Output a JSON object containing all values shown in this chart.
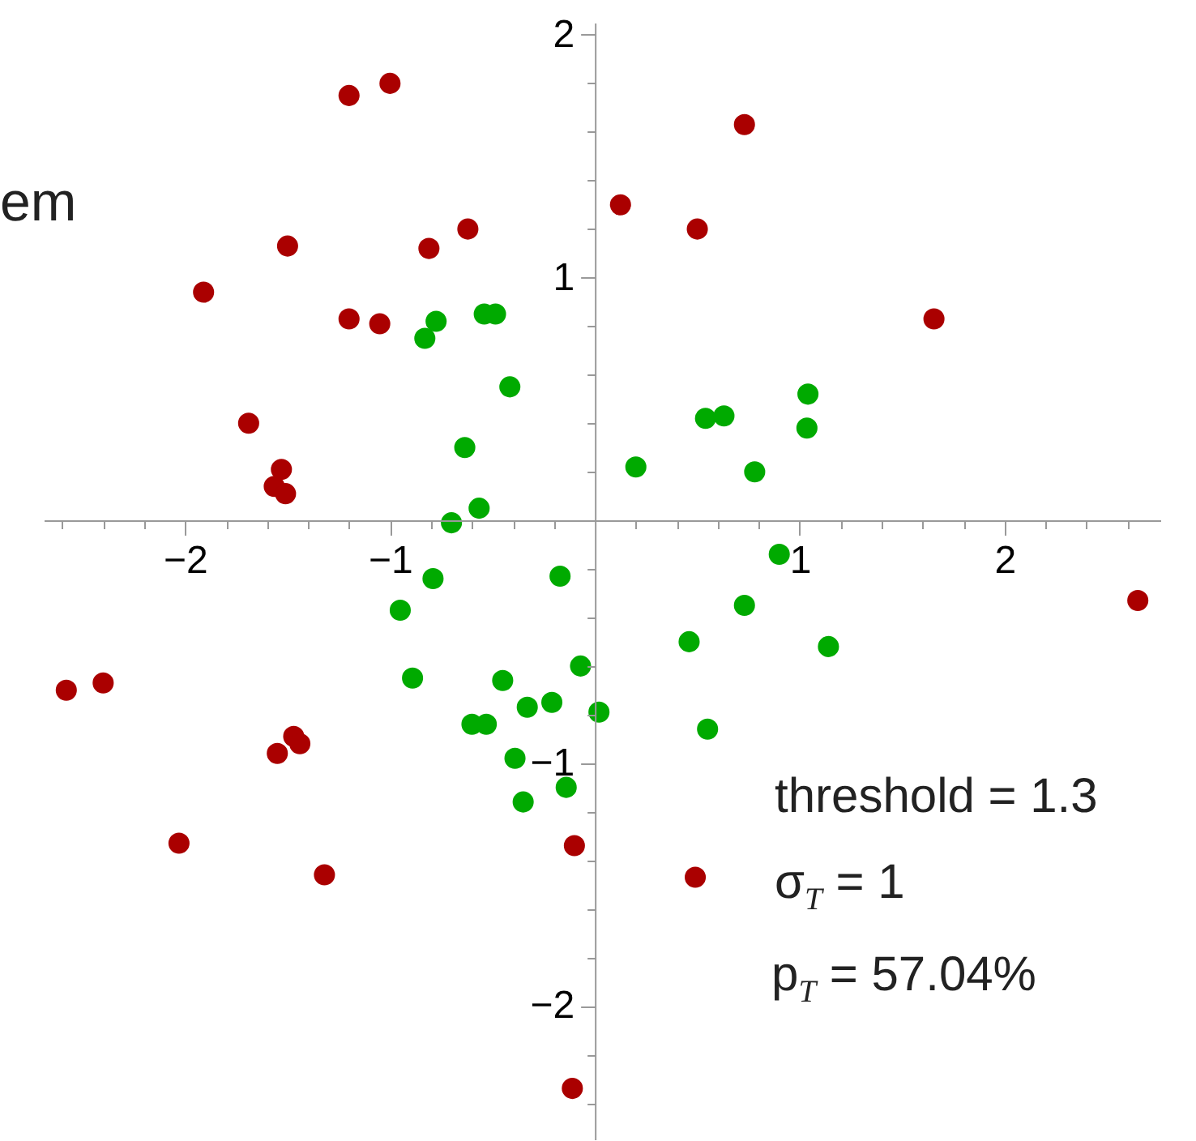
{
  "chart_data": {
    "type": "scatter",
    "marker": "circle",
    "grid": false,
    "xlim": [
      -2.69,
      2.76
    ],
    "ylim": [
      -2.55,
      2.05
    ],
    "xticks": [
      {
        "value": -2.6,
        "label": null
      },
      {
        "value": -2.4,
        "label": null
      },
      {
        "value": -2.2,
        "label": null
      },
      -2,
      {
        "value": -1.8,
        "label": null
      },
      {
        "value": -1.6,
        "label": null
      },
      {
        "value": -1.4,
        "label": null
      },
      {
        "value": -1.2,
        "label": null
      },
      -1,
      {
        "value": -0.8,
        "label": null
      },
      {
        "value": -0.6,
        "label": null
      },
      {
        "value": -0.4,
        "label": null
      },
      {
        "value": -0.2,
        "label": null
      },
      {
        "value": 0.2,
        "label": null
      },
      {
        "value": 0.4,
        "label": null
      },
      {
        "value": 0.6,
        "label": null
      },
      {
        "value": 0.8,
        "label": null
      },
      1,
      {
        "value": 1.2,
        "label": null
      },
      {
        "value": 1.4,
        "label": null
      },
      {
        "value": 1.6,
        "label": null
      },
      {
        "value": 1.8,
        "label": null
      },
      2,
      {
        "value": 2.2,
        "label": null
      },
      {
        "value": 2.4,
        "label": null
      },
      {
        "value": 2.6,
        "label": null
      }
    ],
    "yticks": [
      {
        "value": -2.4,
        "label": null
      },
      {
        "value": -2.2,
        "label": null
      },
      -2,
      {
        "value": -1.8,
        "label": null
      },
      {
        "value": -1.6,
        "label": null
      },
      {
        "value": -1.4,
        "label": null
      },
      {
        "value": -1.2,
        "label": null
      },
      -1,
      {
        "value": -0.8,
        "label": null
      },
      {
        "value": -0.6,
        "label": null
      },
      {
        "value": -0.4,
        "label": null
      },
      {
        "value": -0.2,
        "label": null
      },
      {
        "value": 0.2,
        "label": null
      },
      {
        "value": 0.4,
        "label": null
      },
      {
        "value": 0.6,
        "label": null
      },
      {
        "value": 0.8,
        "label": null
      },
      1,
      {
        "value": 1.2,
        "label": null
      },
      {
        "value": 1.4,
        "label": null
      },
      {
        "value": 1.6,
        "label": null
      },
      {
        "value": 1.8,
        "label": null
      },
      2
    ],
    "series": [
      {
        "color": "#aa0000",
        "x": [
          -1.0,
          -1.2,
          0.73,
          0.125,
          0.5,
          1.655,
          -1.5,
          -0.81,
          -0.62,
          -1.91,
          -1.2,
          -1.05,
          -1.69,
          -1.53,
          -1.565,
          -1.51,
          -2.58,
          -2.4,
          -1.47,
          -1.44,
          -1.55,
          -2.03,
          -1.32,
          -0.1,
          -0.11,
          2.65,
          0.49
        ],
        "values": [
          1.8,
          1.75,
          1.63,
          1.3,
          1.2,
          0.83,
          1.13,
          1.12,
          1.2,
          0.94,
          0.83,
          0.81,
          0.4,
          0.21,
          0.14,
          0.11,
          -0.7,
          -0.67,
          -0.89,
          -0.92,
          -0.96,
          -1.33,
          -1.46,
          -1.34,
          -2.34,
          -0.33,
          -1.47
        ]
      },
      {
        "color": "#00aa00",
        "x": [
          -0.775,
          -0.83,
          -0.54,
          -0.485,
          -0.415,
          -0.635,
          -0.565,
          -0.7,
          0.2,
          0.54,
          0.63,
          1.04,
          1.035,
          0.78,
          -0.79,
          -0.95,
          -0.17,
          -0.07,
          -0.89,
          -0.45,
          -0.33,
          -0.21,
          0.02,
          -0.6,
          -0.53,
          -0.39,
          -0.14,
          -0.35,
          0.9,
          0.73,
          0.46,
          1.14,
          0.55
        ],
        "values": [
          0.82,
          0.75,
          0.85,
          0.85,
          0.55,
          0.3,
          0.05,
          -0.01,
          0.22,
          0.42,
          0.43,
          0.52,
          0.38,
          0.2,
          -0.24,
          -0.37,
          -0.23,
          -0.6,
          -0.65,
          -0.66,
          -0.77,
          -0.75,
          -0.79,
          -0.84,
          -0.84,
          -0.98,
          -1.1,
          -1.16,
          -0.14,
          -0.35,
          -0.5,
          -0.52,
          -0.86
        ]
      }
    ],
    "annotations": [
      "em",
      "threshold = 1.3",
      "σ$_{T}$ = 1",
      "p$_{T}$ = 57.04%"
    ]
  }
}
